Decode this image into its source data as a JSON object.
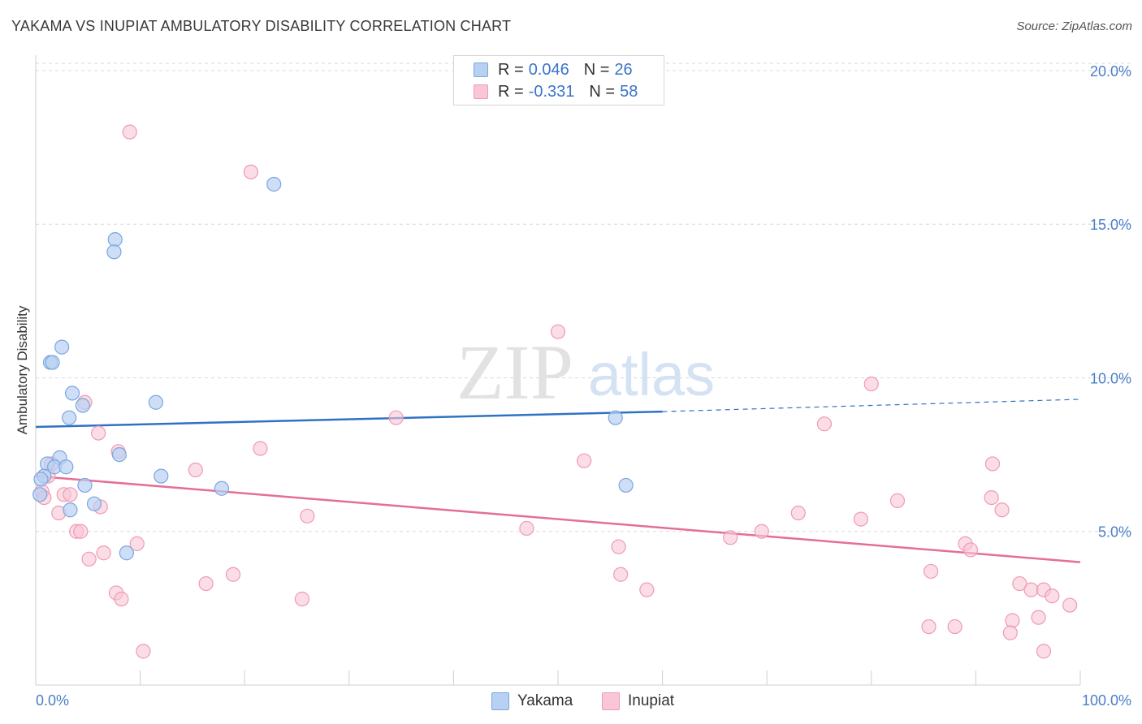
{
  "header": {
    "title": "YAKAMA VS INUPIAT AMBULATORY DISABILITY CORRELATION CHART",
    "source": "Source: ZipAtlas.com"
  },
  "watermark": {
    "zip": "ZIP",
    "atlas": "atlas"
  },
  "legend": {
    "r_label": "R =",
    "n_label": "N =",
    "rows": [
      {
        "r": "0.046",
        "n": "26"
      },
      {
        "r": "-0.331",
        "n": "58"
      }
    ]
  },
  "colors": {
    "yakama_fill": "#b8d0f2",
    "yakama_stroke": "#7aa7e0",
    "yakama_line": "#2f72c4",
    "inupiat_fill": "#f9c6d6",
    "inupiat_stroke": "#ef9ab5",
    "inupiat_line": "#e56e98",
    "axis_label": "#4a7ec9",
    "grid": "#d9d9d9"
  },
  "chart_data": {
    "type": "scatter",
    "title": "YAKAMA VS INUPIAT AMBULATORY DISABILITY CORRELATION CHART",
    "xlabel": "",
    "ylabel": "Ambulatory Disability",
    "xlim": [
      0,
      100
    ],
    "ylim": [
      0,
      20.5
    ],
    "x_tick_labels": [
      "0.0%",
      "100.0%"
    ],
    "y_ticks": [
      5,
      10,
      15,
      20
    ],
    "y_tick_labels": [
      "5.0%",
      "10.0%",
      "15.0%",
      "20.0%"
    ],
    "grid": true,
    "legend_position": "top-center",
    "series": [
      {
        "name": "Yakama",
        "r": 0.046,
        "n": 26,
        "trend": {
          "x_solid": [
            0,
            60
          ],
          "y_solid": [
            8.4,
            8.9
          ],
          "x_dash": [
            60,
            100
          ],
          "y_dash": [
            8.9,
            9.3
          ]
        },
        "points": [
          [
            22.8,
            16.3
          ],
          [
            7.6,
            14.5
          ],
          [
            7.5,
            14.1
          ],
          [
            2.5,
            11.0
          ],
          [
            1.4,
            10.5
          ],
          [
            1.6,
            10.5
          ],
          [
            3.5,
            9.5
          ],
          [
            4.5,
            9.1
          ],
          [
            11.5,
            9.2
          ],
          [
            3.2,
            8.7
          ],
          [
            55.5,
            8.7
          ],
          [
            2.3,
            7.4
          ],
          [
            1.1,
            7.2
          ],
          [
            1.8,
            7.1
          ],
          [
            2.9,
            7.1
          ],
          [
            8.0,
            7.5
          ],
          [
            0.8,
            6.8
          ],
          [
            0.5,
            6.7
          ],
          [
            12.0,
            6.8
          ],
          [
            4.7,
            6.5
          ],
          [
            17.8,
            6.4
          ],
          [
            56.5,
            6.5
          ],
          [
            0.4,
            6.2
          ],
          [
            5.6,
            5.9
          ],
          [
            3.3,
            5.7
          ],
          [
            8.7,
            4.3
          ]
        ]
      },
      {
        "name": "Inupiat",
        "r": -0.331,
        "n": 58,
        "trend": {
          "x_solid": [
            0,
            100
          ],
          "y_solid": [
            6.8,
            4.0
          ]
        },
        "points": [
          [
            9.0,
            18.0
          ],
          [
            20.6,
            16.7
          ],
          [
            50.0,
            11.5
          ],
          [
            80.0,
            9.8
          ],
          [
            4.7,
            9.2
          ],
          [
            34.5,
            8.7
          ],
          [
            75.5,
            8.5
          ],
          [
            6.0,
            8.2
          ],
          [
            21.5,
            7.7
          ],
          [
            7.9,
            7.6
          ],
          [
            52.5,
            7.3
          ],
          [
            91.6,
            7.2
          ],
          [
            1.5,
            7.2
          ],
          [
            15.3,
            7.0
          ],
          [
            1.2,
            6.8
          ],
          [
            0.6,
            6.3
          ],
          [
            0.8,
            6.1
          ],
          [
            2.7,
            6.2
          ],
          [
            3.3,
            6.2
          ],
          [
            91.5,
            6.1
          ],
          [
            82.5,
            6.0
          ],
          [
            6.2,
            5.8
          ],
          [
            92.5,
            5.7
          ],
          [
            2.2,
            5.6
          ],
          [
            73.0,
            5.6
          ],
          [
            26.0,
            5.5
          ],
          [
            79.0,
            5.4
          ],
          [
            47.0,
            5.1
          ],
          [
            3.9,
            5.0
          ],
          [
            4.3,
            5.0
          ],
          [
            69.5,
            5.0
          ],
          [
            66.5,
            4.8
          ],
          [
            9.7,
            4.6
          ],
          [
            89.0,
            4.6
          ],
          [
            55.8,
            4.5
          ],
          [
            89.5,
            4.4
          ],
          [
            6.5,
            4.3
          ],
          [
            5.1,
            4.1
          ],
          [
            18.9,
            3.6
          ],
          [
            56.0,
            3.6
          ],
          [
            85.7,
            3.7
          ],
          [
            16.3,
            3.3
          ],
          [
            94.2,
            3.3
          ],
          [
            58.5,
            3.1
          ],
          [
            95.3,
            3.1
          ],
          [
            96.5,
            3.1
          ],
          [
            7.7,
            3.0
          ],
          [
            97.3,
            2.9
          ],
          [
            8.2,
            2.8
          ],
          [
            25.5,
            2.8
          ],
          [
            99.0,
            2.6
          ],
          [
            96.0,
            2.2
          ],
          [
            93.5,
            2.1
          ],
          [
            85.5,
            1.9
          ],
          [
            88.0,
            1.9
          ],
          [
            93.3,
            1.7
          ],
          [
            10.3,
            1.1
          ],
          [
            96.5,
            1.1
          ]
        ]
      }
    ]
  }
}
